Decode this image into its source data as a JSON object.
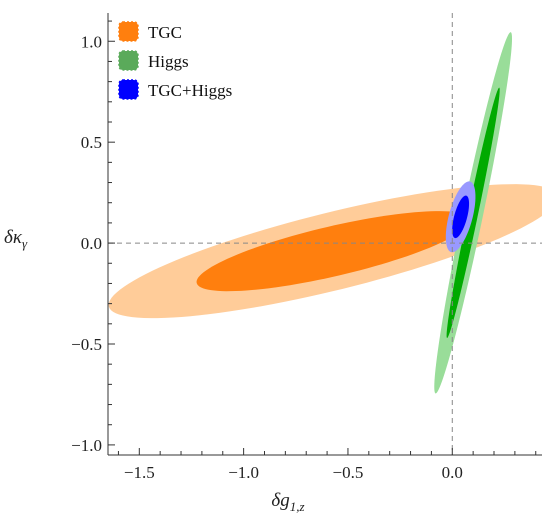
{
  "chart_data": {
    "type": "contour",
    "title": "",
    "xlabel": "δg",
    "xlabel_subscript": "1,z",
    "ylabel": "δκ",
    "ylabel_subscript": "γ",
    "xlim": [
      -1.65,
      0.43
    ],
    "ylim": [
      -1.05,
      1.14
    ],
    "xticks": [
      -1.5,
      -1.0,
      -0.5,
      0.0
    ],
    "xtick_labels": [
      "−1.5",
      "−1.0",
      "−0.5",
      "0.0"
    ],
    "yticks": [
      -1.0,
      -0.5,
      0.0,
      0.5,
      1.0
    ],
    "ytick_labels": [
      "−1.0",
      "−0.5",
      "0.0",
      "0.5",
      "1.0"
    ],
    "reference_lines": {
      "x": 0.0,
      "y": 0.0,
      "style": "dashed"
    },
    "legend_position": "top-left",
    "legend": [
      {
        "key": "tgc",
        "label": "TGC",
        "color": "#ff7f0e"
      },
      {
        "key": "higgs",
        "label": "Higgs",
        "color": "#5aaa5a"
      },
      {
        "key": "combined",
        "label": "TGC+Higgs",
        "color": "#0000ff"
      }
    ],
    "series": [
      {
        "key": "tgc",
        "center": [
          -0.57,
          -0.04
        ],
        "color_outer": "#ffcc99",
        "color_inner": "#ff7f0e",
        "outer": {
          "u": [
            1.076,
            0.275
          ],
          "v": [
            -0.0475,
            0.186
          ]
        },
        "inner": {
          "u": [
            0.655,
            0.158
          ],
          "v": [
            -0.029,
            0.12
          ]
        }
      },
      {
        "key": "higgs",
        "center": [
          0.1,
          0.15
        ],
        "color_outer": "#99dd99",
        "color_inner": "#00aa00",
        "outer": {
          "u": [
            0.18,
            0.895
          ],
          "v": [
            0.048,
            -0.0097
          ]
        },
        "inner": {
          "u": [
            0.125,
            0.62
          ],
          "v": [
            0.024,
            -0.0049
          ]
        }
      },
      {
        "key": "combined",
        "center": [
          0.04,
          0.13
        ],
        "color_outer": "#9999ff",
        "color_inner": "#0000ff",
        "outer": {
          "u": [
            0.045,
            0.175
          ],
          "v": [
            0.055,
            -0.014
          ]
        },
        "inner": {
          "u": [
            0.027,
            0.105
          ],
          "v": [
            0.03,
            -0.0077
          ]
        }
      }
    ]
  }
}
